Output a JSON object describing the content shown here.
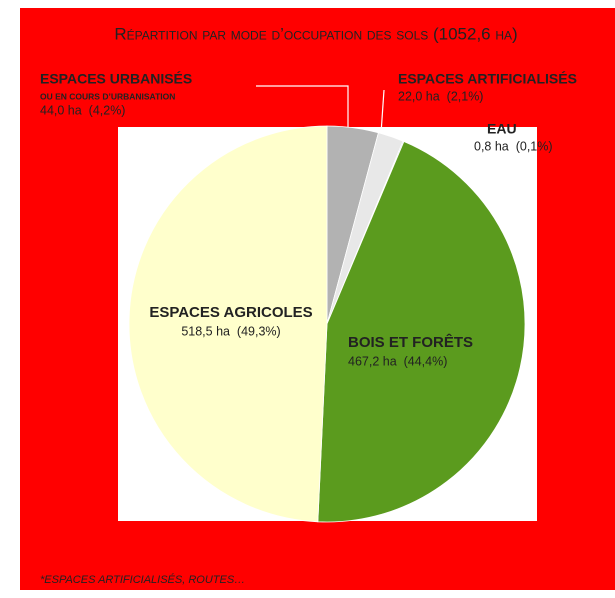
{
  "chart_data": {
    "type": "pie",
    "title": "Répartition par mode d’occupation des sols (1052,6 ha)",
    "categories": [
      "ESPACES URBANISÉS",
      "ESPACES ARTIFICIALISÉS",
      "EAU",
      "BOIS ET FORÊTS",
      "ESPACES AGRICOLES"
    ],
    "values": [
      44.0,
      22.0,
      0.8,
      467.2,
      518.5
    ],
    "value_labels": [
      "44,0 ha  (4,2%)",
      "22,0 ha  (2,1%)",
      "0,8 ha  (0,1%)",
      "467,2 ha  (44,4%)",
      "518,5 ha  (49,3%)"
    ],
    "colors": [
      "#b2b2b2",
      "#e8e8e8",
      "#1f6fc0",
      "#5b9b1e",
      "#ffffcc"
    ],
    "annotations": [
      "OU EN COURS D’URBANISATION",
      "*ESPACES ARTIFICIALISÉS, ROUTES…"
    ]
  }
}
